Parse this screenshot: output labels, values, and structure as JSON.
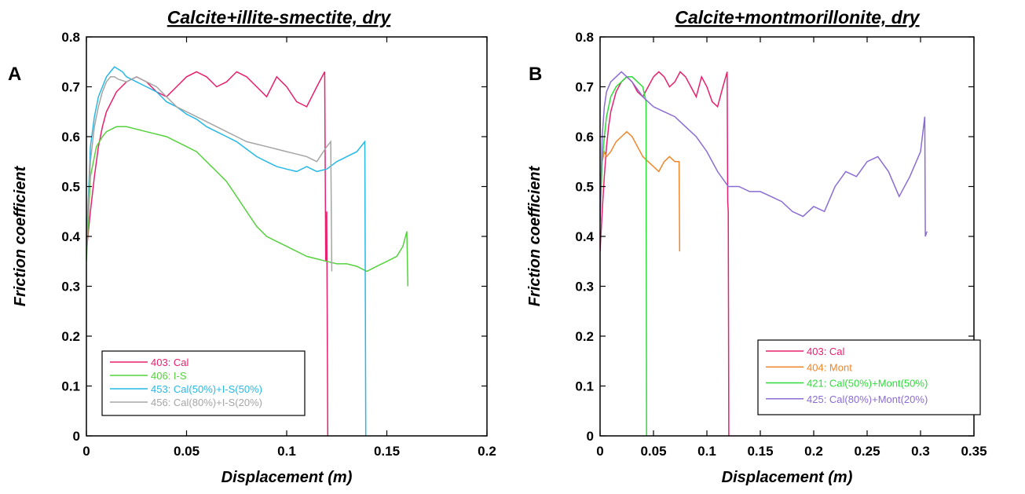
{
  "chart_data": [
    {
      "type": "line",
      "panel_label": "A",
      "title": "Calcite+illite-smectite, dry",
      "xlabel": "Displacement (m)",
      "ylabel": "Friction coefficient",
      "xlim": [
        0,
        0.2
      ],
      "ylim": [
        0,
        0.8
      ],
      "xticks": [
        "0",
        "0.05",
        "0.1",
        "0.15",
        "0.2"
      ],
      "yticks": [
        "0",
        "0.1",
        "0.2",
        "0.3",
        "0.4",
        "0.5",
        "0.6",
        "0.7",
        "0.8"
      ],
      "legend_position": "bottom-left",
      "series": [
        {
          "name": "403: Cal",
          "color": "#e8206e",
          "x": [
            0,
            0.002,
            0.004,
            0.006,
            0.008,
            0.01,
            0.015,
            0.02,
            0.025,
            0.03,
            0.035,
            0.04,
            0.045,
            0.05,
            0.055,
            0.06,
            0.065,
            0.07,
            0.075,
            0.08,
            0.085,
            0.09,
            0.095,
            0.1,
            0.105,
            0.11,
            0.115,
            0.119,
            0.1195,
            0.12,
            0.1205
          ],
          "y": [
            0.37,
            0.45,
            0.52,
            0.58,
            0.62,
            0.65,
            0.69,
            0.71,
            0.72,
            0.71,
            0.69,
            0.68,
            0.7,
            0.72,
            0.73,
            0.72,
            0.7,
            0.71,
            0.73,
            0.72,
            0.7,
            0.68,
            0.72,
            0.7,
            0.67,
            0.66,
            0.7,
            0.73,
            0.35,
            0.45,
            0.0
          ]
        },
        {
          "name": "406: I-S",
          "color": "#56d23e",
          "x": [
            0,
            0.002,
            0.005,
            0.008,
            0.01,
            0.015,
            0.02,
            0.03,
            0.04,
            0.05,
            0.055,
            0.06,
            0.065,
            0.07,
            0.075,
            0.08,
            0.085,
            0.09,
            0.095,
            0.1,
            0.105,
            0.11,
            0.115,
            0.12,
            0.125,
            0.13,
            0.135,
            0.14,
            0.145,
            0.15,
            0.155,
            0.158,
            0.16,
            0.1605
          ],
          "y": [
            0.35,
            0.52,
            0.58,
            0.6,
            0.61,
            0.62,
            0.62,
            0.61,
            0.6,
            0.58,
            0.57,
            0.55,
            0.53,
            0.51,
            0.48,
            0.45,
            0.42,
            0.4,
            0.39,
            0.38,
            0.37,
            0.36,
            0.355,
            0.35,
            0.345,
            0.345,
            0.34,
            0.33,
            0.34,
            0.35,
            0.36,
            0.38,
            0.41,
            0.3
          ]
        },
        {
          "name": "453: Cal(50%)+I-S(50%)",
          "color": "#27b8e6",
          "x": [
            0,
            0.002,
            0.004,
            0.006,
            0.008,
            0.01,
            0.012,
            0.014,
            0.016,
            0.018,
            0.02,
            0.025,
            0.03,
            0.035,
            0.04,
            0.045,
            0.05,
            0.055,
            0.06,
            0.065,
            0.07,
            0.075,
            0.08,
            0.085,
            0.09,
            0.095,
            0.1,
            0.105,
            0.11,
            0.115,
            0.12,
            0.125,
            0.13,
            0.135,
            0.139,
            0.1395
          ],
          "y": [
            0.38,
            0.58,
            0.64,
            0.68,
            0.7,
            0.72,
            0.73,
            0.74,
            0.735,
            0.73,
            0.72,
            0.71,
            0.7,
            0.69,
            0.67,
            0.66,
            0.645,
            0.635,
            0.62,
            0.61,
            0.6,
            0.59,
            0.575,
            0.56,
            0.55,
            0.54,
            0.535,
            0.53,
            0.54,
            0.53,
            0.535,
            0.55,
            0.56,
            0.57,
            0.59,
            0.0
          ]
        },
        {
          "name": "456: Cal(80%)+I-S(20%)",
          "color": "#a5a5a5",
          "x": [
            0,
            0.002,
            0.004,
            0.006,
            0.008,
            0.01,
            0.012,
            0.014,
            0.016,
            0.02,
            0.025,
            0.03,
            0.035,
            0.04,
            0.045,
            0.05,
            0.055,
            0.06,
            0.065,
            0.07,
            0.075,
            0.08,
            0.085,
            0.09,
            0.095,
            0.1,
            0.105,
            0.11,
            0.115,
            0.12,
            0.122,
            0.1225
          ],
          "y": [
            0.38,
            0.55,
            0.62,
            0.66,
            0.69,
            0.71,
            0.72,
            0.72,
            0.715,
            0.71,
            0.72,
            0.71,
            0.7,
            0.68,
            0.66,
            0.65,
            0.64,
            0.63,
            0.62,
            0.61,
            0.6,
            0.59,
            0.585,
            0.58,
            0.575,
            0.57,
            0.565,
            0.56,
            0.55,
            0.58,
            0.59,
            0.33
          ]
        }
      ]
    },
    {
      "type": "line",
      "panel_label": "B",
      "title": "Calcite+montmorillonite, dry",
      "xlabel": "Displacement (m)",
      "ylabel": "Friction coefficient",
      "xlim": [
        0,
        0.35
      ],
      "ylim": [
        0,
        0.8
      ],
      "xticks": [
        "0",
        "0.05",
        "0.1",
        "0.15",
        "0.2",
        "0.25",
        "0.3",
        "0.35"
      ],
      "yticks": [
        "0",
        "0.1",
        "0.2",
        "0.3",
        "0.4",
        "0.5",
        "0.6",
        "0.7",
        "0.8"
      ],
      "legend_position": "bottom-right",
      "series": [
        {
          "name": "403: Cal",
          "color": "#e8206e",
          "x": [
            0,
            0.002,
            0.004,
            0.006,
            0.008,
            0.01,
            0.015,
            0.02,
            0.025,
            0.03,
            0.035,
            0.04,
            0.045,
            0.05,
            0.055,
            0.06,
            0.065,
            0.07,
            0.075,
            0.08,
            0.085,
            0.09,
            0.095,
            0.1,
            0.105,
            0.11,
            0.115,
            0.119,
            0.1195,
            0.12,
            0.1205
          ],
          "y": [
            0.37,
            0.45,
            0.52,
            0.58,
            0.62,
            0.65,
            0.69,
            0.71,
            0.72,
            0.71,
            0.69,
            0.68,
            0.7,
            0.72,
            0.73,
            0.72,
            0.7,
            0.71,
            0.73,
            0.72,
            0.7,
            0.68,
            0.72,
            0.7,
            0.67,
            0.66,
            0.7,
            0.73,
            0.47,
            0.45,
            0.0
          ]
        },
        {
          "name": "404: Mont",
          "color": "#f0862a",
          "x": [
            0,
            0.002,
            0.004,
            0.006,
            0.01,
            0.015,
            0.02,
            0.025,
            0.03,
            0.035,
            0.04,
            0.045,
            0.05,
            0.055,
            0.06,
            0.065,
            0.07,
            0.074,
            0.0745
          ],
          "y": [
            0.5,
            0.55,
            0.57,
            0.56,
            0.57,
            0.59,
            0.6,
            0.61,
            0.6,
            0.58,
            0.56,
            0.55,
            0.54,
            0.53,
            0.55,
            0.56,
            0.55,
            0.55,
            0.37
          ]
        },
        {
          "name": "421: Cal(50%)+Mont(50%)",
          "color": "#2edc39",
          "x": [
            0,
            0.002,
            0.004,
            0.006,
            0.008,
            0.01,
            0.015,
            0.02,
            0.025,
            0.03,
            0.035,
            0.04,
            0.043,
            0.0435
          ],
          "y": [
            0.43,
            0.55,
            0.6,
            0.64,
            0.66,
            0.68,
            0.7,
            0.71,
            0.72,
            0.72,
            0.71,
            0.7,
            0.67,
            0.0
          ]
        },
        {
          "name": "425: Cal(80%)+Mont(20%)",
          "color": "#8a6cd3",
          "x": [
            0,
            0.002,
            0.004,
            0.006,
            0.008,
            0.01,
            0.015,
            0.02,
            0.025,
            0.03,
            0.04,
            0.05,
            0.06,
            0.07,
            0.08,
            0.09,
            0.1,
            0.11,
            0.12,
            0.13,
            0.14,
            0.15,
            0.16,
            0.17,
            0.18,
            0.19,
            0.2,
            0.21,
            0.22,
            0.23,
            0.24,
            0.25,
            0.26,
            0.27,
            0.28,
            0.29,
            0.3,
            0.304,
            0.3045,
            0.306
          ],
          "y": [
            0.43,
            0.6,
            0.66,
            0.69,
            0.7,
            0.71,
            0.72,
            0.73,
            0.72,
            0.71,
            0.68,
            0.66,
            0.65,
            0.64,
            0.62,
            0.6,
            0.57,
            0.53,
            0.5,
            0.5,
            0.49,
            0.49,
            0.48,
            0.47,
            0.45,
            0.44,
            0.46,
            0.45,
            0.5,
            0.53,
            0.52,
            0.55,
            0.56,
            0.53,
            0.48,
            0.52,
            0.57,
            0.64,
            0.4,
            0.41
          ]
        }
      ]
    }
  ]
}
